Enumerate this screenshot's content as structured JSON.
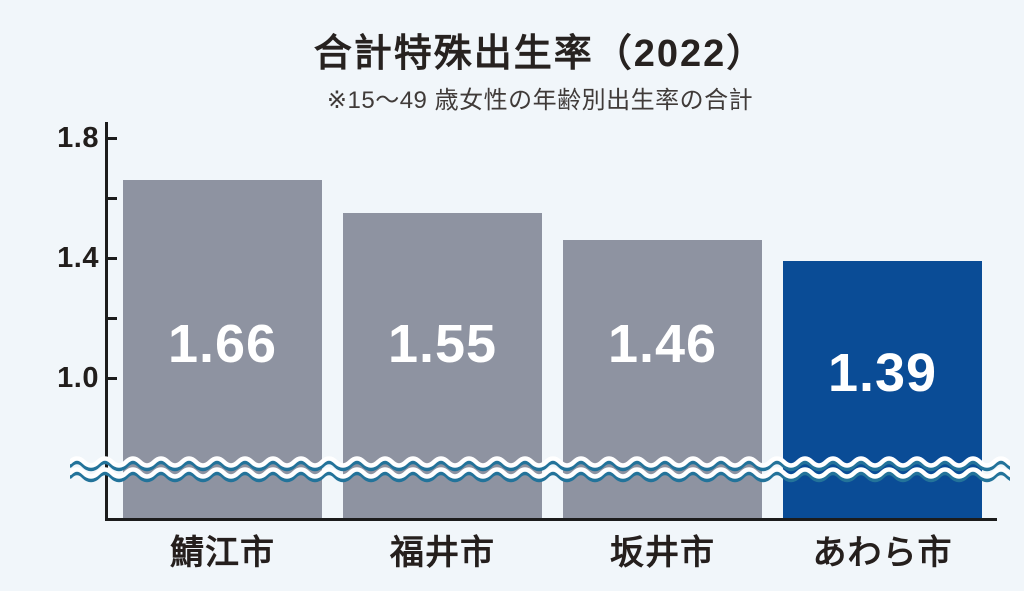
{
  "page": {
    "background": "#f1f6fa"
  },
  "header": {
    "title": "合計特殊出生率（2022）",
    "subtitle": "※15〜49 歳女性の年齢別出生率の合計"
  },
  "chart_data": {
    "type": "bar",
    "title": "合計特殊出生率（2022）",
    "subtitle": "※15〜49 歳女性の年齢別出生率の合計",
    "categories": [
      "鯖江市",
      "福井市",
      "坂井市",
      "あわら市"
    ],
    "values": [
      1.66,
      1.55,
      1.46,
      1.39
    ],
    "value_labels": [
      "1.66",
      "1.55",
      "1.46",
      "1.39"
    ],
    "highlight_index": 3,
    "highlight_category": "あわら市",
    "y_axis": {
      "max_shown": 1.8,
      "min_shown": 1.0,
      "tick_values": [
        1.8,
        1.6,
        1.4,
        1.2,
        1.0
      ],
      "ticks_labeled": [
        "1.8",
        "1.4",
        "1.0"
      ],
      "axis_break": true
    },
    "legend": "none",
    "grid": false,
    "colors": {
      "bar_default": "#8e93a1",
      "bar_highlight": "#0a4c96",
      "value_text": "#ffffff",
      "wave_teal": "#23739a",
      "wave_white": "#ffffff",
      "axis": "#1c1c1c",
      "background": "#f1f6fa"
    }
  }
}
